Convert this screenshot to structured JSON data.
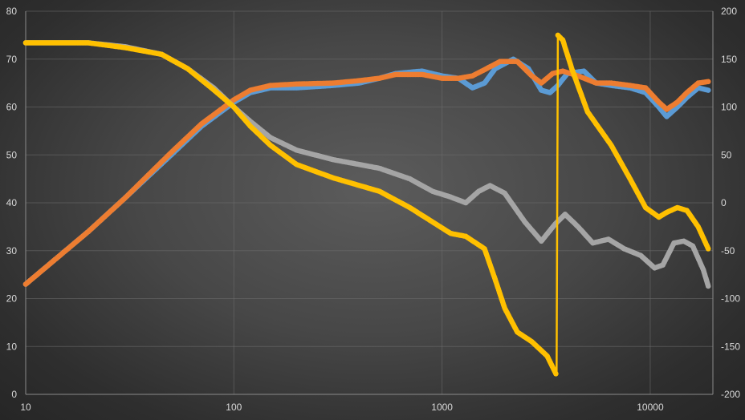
{
  "chart_data": {
    "type": "line",
    "title": "",
    "xlabel": "",
    "ylabel": "",
    "y2label": "",
    "x_scale": "log",
    "xlim": [
      10,
      20000
    ],
    "ylim": [
      0,
      80
    ],
    "y2lim": [
      -200,
      200
    ],
    "grid": true,
    "legend": "none",
    "x_ticks": [
      "10",
      "100",
      "1000",
      "10000"
    ],
    "y_ticks": [
      "0",
      "10",
      "20",
      "30",
      "40",
      "50",
      "60",
      "70",
      "80"
    ],
    "y2_ticks": [
      "-200",
      "-150",
      "-100",
      "-50",
      "0",
      "50",
      "100",
      "150",
      "200"
    ],
    "series": [
      {
        "color": "#5b9bd5",
        "axis": "left",
        "marker": "dot",
        "points": [
          [
            10,
            23
          ],
          [
            20,
            34
          ],
          [
            30,
            41
          ],
          [
            50,
            50
          ],
          [
            70,
            56
          ],
          [
            100,
            61
          ],
          [
            120,
            63
          ],
          [
            150,
            64
          ],
          [
            200,
            64
          ],
          [
            300,
            64.5
          ],
          [
            400,
            65
          ],
          [
            500,
            66
          ],
          [
            600,
            67
          ],
          [
            800,
            67.5
          ],
          [
            1000,
            66.5
          ],
          [
            1200,
            66
          ],
          [
            1400,
            64
          ],
          [
            1600,
            65
          ],
          [
            1800,
            68
          ],
          [
            2200,
            70
          ],
          [
            2600,
            68
          ],
          [
            3000,
            63.5
          ],
          [
            3300,
            63
          ],
          [
            3600,
            64.5
          ],
          [
            4000,
            67
          ],
          [
            4800,
            67.5
          ],
          [
            5500,
            65
          ],
          [
            6500,
            64.5
          ],
          [
            8000,
            64
          ],
          [
            9500,
            63
          ],
          [
            11000,
            60
          ],
          [
            12000,
            58
          ],
          [
            13500,
            60
          ],
          [
            15000,
            62
          ],
          [
            17000,
            64
          ],
          [
            19000,
            63.5
          ]
        ]
      },
      {
        "color": "#ed7d31",
        "axis": "left",
        "marker": "dot",
        "points": [
          [
            10,
            23
          ],
          [
            20,
            34
          ],
          [
            30,
            41
          ],
          [
            50,
            50.5
          ],
          [
            70,
            56.5
          ],
          [
            100,
            61.5
          ],
          [
            120,
            63.5
          ],
          [
            150,
            64.5
          ],
          [
            200,
            64.8
          ],
          [
            300,
            65
          ],
          [
            400,
            65.5
          ],
          [
            500,
            66
          ],
          [
            600,
            66.8
          ],
          [
            800,
            66.8
          ],
          [
            1000,
            66
          ],
          [
            1200,
            66
          ],
          [
            1400,
            66.5
          ],
          [
            1600,
            67.8
          ],
          [
            1900,
            69.5
          ],
          [
            2300,
            69.5
          ],
          [
            2700,
            66.5
          ],
          [
            3000,
            65
          ],
          [
            3400,
            67
          ],
          [
            3800,
            67.5
          ],
          [
            4500,
            66.5
          ],
          [
            5500,
            65
          ],
          [
            6500,
            65
          ],
          [
            8000,
            64.5
          ],
          [
            9500,
            64
          ],
          [
            11000,
            61
          ],
          [
            12000,
            59.5
          ],
          [
            13500,
            61
          ],
          [
            15000,
            63
          ],
          [
            17000,
            65
          ],
          [
            19000,
            65.3
          ]
        ]
      },
      {
        "color": "#a5a5a5",
        "axis": "right",
        "marker": "dot",
        "points": [
          [
            10,
            167
          ],
          [
            20,
            167
          ],
          [
            30,
            163
          ],
          [
            45,
            155
          ],
          [
            60,
            140
          ],
          [
            80,
            120
          ],
          [
            100,
            100
          ],
          [
            120,
            85
          ],
          [
            150,
            68
          ],
          [
            200,
            55
          ],
          [
            300,
            45
          ],
          [
            400,
            40
          ],
          [
            500,
            36
          ],
          [
            700,
            25
          ],
          [
            900,
            12
          ],
          [
            1100,
            6
          ],
          [
            1300,
            0
          ],
          [
            1500,
            12
          ],
          [
            1700,
            18
          ],
          [
            2000,
            10
          ],
          [
            2500,
            -20
          ],
          [
            3000,
            -40
          ],
          [
            3500,
            -22
          ],
          [
            3900,
            -12
          ],
          [
            4500,
            -25
          ],
          [
            5300,
            -42
          ],
          [
            6300,
            -38
          ],
          [
            7500,
            -48
          ],
          [
            9000,
            -55
          ],
          [
            10500,
            -68
          ],
          [
            11500,
            -65
          ],
          [
            13000,
            -42
          ],
          [
            14500,
            -40
          ],
          [
            16000,
            -45
          ],
          [
            18000,
            -70
          ],
          [
            19000,
            -87
          ]
        ]
      },
      {
        "color": "#ffc000",
        "axis": "right",
        "marker": "dot",
        "points": [
          [
            10,
            167
          ],
          [
            20,
            167
          ],
          [
            30,
            162
          ],
          [
            45,
            155
          ],
          [
            60,
            140
          ],
          [
            80,
            118
          ],
          [
            100,
            100
          ],
          [
            120,
            80
          ],
          [
            150,
            60
          ],
          [
            200,
            40
          ],
          [
            300,
            26
          ],
          [
            500,
            12
          ],
          [
            700,
            -5
          ],
          [
            900,
            -20
          ],
          [
            1100,
            -32
          ],
          [
            1300,
            -35
          ],
          [
            1600,
            -48
          ],
          [
            1800,
            -80
          ],
          [
            2000,
            -110
          ],
          [
            2300,
            -135
          ],
          [
            2700,
            -145
          ],
          [
            3200,
            -160
          ],
          [
            3550,
            -180
          ],
          [
            3600,
            175
          ],
          [
            3800,
            170
          ],
          [
            4200,
            140
          ],
          [
            5000,
            95
          ],
          [
            6500,
            60
          ],
          [
            8000,
            25
          ],
          [
            9500,
            -5
          ],
          [
            11000,
            -15
          ],
          [
            12000,
            -10
          ],
          [
            13500,
            -5
          ],
          [
            15000,
            -8
          ],
          [
            17000,
            -25
          ],
          [
            19000,
            -48
          ]
        ]
      }
    ]
  }
}
